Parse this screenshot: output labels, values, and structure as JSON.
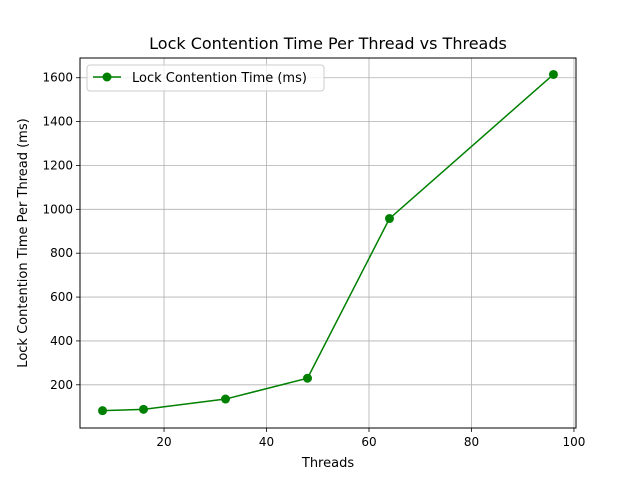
{
  "chart_data": {
    "type": "line",
    "title": "Lock Contention Time Per Thread vs Threads",
    "xlabel": "Threads",
    "ylabel": "Lock Contention Time Per Thread (ms)",
    "xlim": [
      3.6,
      100.4
    ],
    "ylim": [
      3,
      1690
    ],
    "xticks": [
      20,
      40,
      60,
      80,
      100
    ],
    "yticks": [
      200,
      400,
      600,
      800,
      1000,
      1200,
      1400,
      1600
    ],
    "grid": true,
    "legend_position": "upper-left",
    "series": [
      {
        "name": "Lock Contention Time (ms)",
        "color": "#008000",
        "marker": "circle",
        "x": [
          8,
          16,
          32,
          48,
          64,
          96
        ],
        "y": [
          82,
          88,
          135,
          230,
          958,
          1615
        ]
      }
    ]
  }
}
